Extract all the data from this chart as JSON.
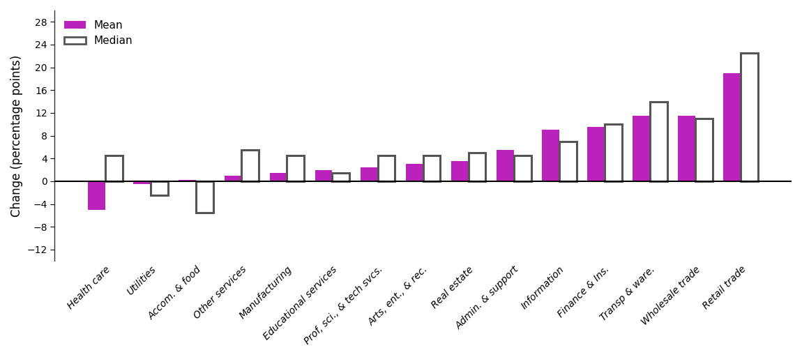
{
  "categories": [
    "Health care",
    "Utilities",
    "Accom. & food",
    "Other services",
    "Manufacturing",
    "Educational services",
    "Prof, sci., & tech svcs.",
    "Arts, ent., & rec.",
    "Real estate",
    "Admin. & support",
    "Information",
    "Finance & Ins.",
    "Transp & ware.",
    "Wholesale trade",
    "Retail trade"
  ],
  "mean_values": [
    -5.0,
    -0.5,
    0.3,
    1.0,
    1.5,
    2.0,
    2.5,
    3.0,
    3.5,
    5.5,
    9.0,
    9.5,
    11.5,
    11.5,
    19.0
  ],
  "median_values": [
    4.5,
    -2.5,
    -5.5,
    5.5,
    4.5,
    1.5,
    4.5,
    4.5,
    5.0,
    4.5,
    7.0,
    10.0,
    14.0,
    11.0,
    22.5
  ],
  "mean_color": "#bb22bb",
  "median_facecolor": "#ffffff",
  "median_edgecolor": "#555555",
  "ylabel": "Change (percentage points)",
  "ylim": [
    -14,
    30
  ],
  "yticks": [
    -12,
    -8,
    -4,
    0,
    4,
    8,
    12,
    16,
    20,
    24,
    28
  ],
  "legend_mean": "Mean",
  "legend_median": "Median",
  "bar_width": 0.38,
  "figwidth": 11.5,
  "figheight": 5.12,
  "dpi": 100
}
